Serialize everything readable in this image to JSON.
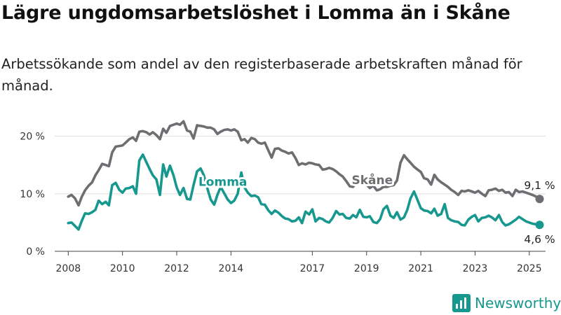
{
  "title": "Lägre ungdomsarbetslöshet i Lomma än i Skåne",
  "subtitle": "Arbetssökande som andel av den registerbaserade arbetskraften månad för månad.",
  "brand": "Newsworthy",
  "colors": {
    "skane": "#6e6e72",
    "lomma": "#17988e",
    "grid": "#dddddd",
    "axis": "#444444"
  },
  "chart_data": {
    "type": "line",
    "title": "Lägre ungdomsarbetslöshet i Lomma än i Skåne",
    "subtitle": "Arbetssökande som andel av den registerbaserade arbetskraften månad för månad.",
    "xlabel": "",
    "ylabel": "",
    "xlim": [
      2007.5,
      2025.6
    ],
    "ylim": [
      0,
      23
    ],
    "grid": true,
    "y_ticks": [
      0,
      10,
      20
    ],
    "y_tick_labels": [
      "0 %",
      "10 %",
      "20 %"
    ],
    "x_ticks": [
      2008,
      2010,
      2012,
      2014,
      2017,
      2019,
      2021,
      2023,
      2025
    ],
    "x_tick_labels": [
      "2008",
      "2010",
      "2012",
      "2014",
      "2017",
      "2019",
      "2021",
      "2023",
      "2025"
    ],
    "series": [
      {
        "name": "Skåne",
        "color": "#6e6e72",
        "end_label": "9,1 %",
        "points": [
          [
            2008.0,
            9.5
          ],
          [
            2008.12,
            9.8
          ],
          [
            2008.25,
            9.2
          ],
          [
            2008.38,
            8.0
          ],
          [
            2008.5,
            9.5
          ],
          [
            2008.62,
            10.6
          ],
          [
            2008.75,
            11.4
          ],
          [
            2008.88,
            12.0
          ],
          [
            2009.0,
            13.2
          ],
          [
            2009.12,
            14.1
          ],
          [
            2009.25,
            15.2
          ],
          [
            2009.38,
            15.0
          ],
          [
            2009.5,
            14.8
          ],
          [
            2009.62,
            17.2
          ],
          [
            2009.75,
            18.2
          ],
          [
            2009.88,
            18.3
          ],
          [
            2010.0,
            18.4
          ],
          [
            2010.12,
            18.9
          ],
          [
            2010.25,
            19.5
          ],
          [
            2010.38,
            19.8
          ],
          [
            2010.5,
            19.2
          ],
          [
            2010.62,
            20.8
          ],
          [
            2010.75,
            20.9
          ],
          [
            2010.88,
            20.7
          ],
          [
            2011.0,
            20.3
          ],
          [
            2011.12,
            20.7
          ],
          [
            2011.25,
            20.2
          ],
          [
            2011.38,
            19.5
          ],
          [
            2011.5,
            21.3
          ],
          [
            2011.62,
            20.6
          ],
          [
            2011.75,
            21.8
          ],
          [
            2011.88,
            22.0
          ],
          [
            2012.0,
            22.2
          ],
          [
            2012.12,
            22.0
          ],
          [
            2012.25,
            22.6
          ],
          [
            2012.38,
            21.0
          ],
          [
            2012.5,
            20.8
          ],
          [
            2012.62,
            19.6
          ],
          [
            2012.75,
            21.9
          ],
          [
            2012.88,
            21.8
          ],
          [
            2013.0,
            21.7
          ],
          [
            2013.12,
            21.5
          ],
          [
            2013.25,
            21.5
          ],
          [
            2013.38,
            21.2
          ],
          [
            2013.5,
            20.4
          ],
          [
            2013.62,
            20.8
          ],
          [
            2013.75,
            21.1
          ],
          [
            2013.88,
            21.2
          ],
          [
            2014.0,
            21.0
          ],
          [
            2014.12,
            21.2
          ],
          [
            2014.25,
            20.8
          ],
          [
            2014.38,
            19.3
          ],
          [
            2014.5,
            19.5
          ],
          [
            2014.62,
            18.9
          ],
          [
            2014.75,
            19.7
          ],
          [
            2014.88,
            19.5
          ],
          [
            2015.0,
            18.9
          ],
          [
            2015.12,
            18.7
          ],
          [
            2015.25,
            18.9
          ],
          [
            2015.38,
            17.5
          ],
          [
            2015.5,
            16.3
          ],
          [
            2015.62,
            17.8
          ],
          [
            2015.75,
            17.9
          ],
          [
            2015.88,
            17.5
          ],
          [
            2016.0,
            17.3
          ],
          [
            2016.12,
            17.0
          ],
          [
            2016.25,
            17.2
          ],
          [
            2016.38,
            16.2
          ],
          [
            2016.5,
            15.0
          ],
          [
            2016.62,
            15.3
          ],
          [
            2016.75,
            15.1
          ],
          [
            2016.88,
            15.4
          ],
          [
            2017.0,
            15.3
          ],
          [
            2017.12,
            15.1
          ],
          [
            2017.25,
            15.0
          ],
          [
            2017.38,
            14.2
          ],
          [
            2017.5,
            14.3
          ],
          [
            2017.62,
            14.5
          ],
          [
            2017.75,
            14.3
          ],
          [
            2017.88,
            13.9
          ],
          [
            2018.0,
            13.4
          ],
          [
            2018.12,
            13.0
          ],
          [
            2018.25,
            12.2
          ],
          [
            2018.38,
            11.3
          ],
          [
            2018.5,
            11.2
          ],
          [
            2018.62,
            11.9
          ],
          [
            2018.75,
            12.1
          ],
          [
            2018.88,
            11.8
          ],
          [
            2019.0,
            11.6
          ],
          [
            2019.12,
            11.0
          ],
          [
            2019.25,
            11.4
          ],
          [
            2019.38,
            10.6
          ],
          [
            2019.5,
            10.8
          ],
          [
            2019.62,
            11.2
          ],
          [
            2019.75,
            11.2
          ],
          [
            2019.88,
            11.4
          ],
          [
            2020.0,
            11.5
          ],
          [
            2020.12,
            12.3
          ],
          [
            2020.25,
            15.4
          ],
          [
            2020.38,
            16.7
          ],
          [
            2020.5,
            16.0
          ],
          [
            2020.62,
            15.4
          ],
          [
            2020.75,
            14.7
          ],
          [
            2020.88,
            14.2
          ],
          [
            2021.0,
            13.8
          ],
          [
            2021.12,
            12.7
          ],
          [
            2021.25,
            12.5
          ],
          [
            2021.38,
            11.6
          ],
          [
            2021.5,
            13.3
          ],
          [
            2021.62,
            12.5
          ],
          [
            2021.75,
            12.0
          ],
          [
            2021.88,
            11.6
          ],
          [
            2022.0,
            11.2
          ],
          [
            2022.12,
            10.7
          ],
          [
            2022.25,
            10.3
          ],
          [
            2022.38,
            9.8
          ],
          [
            2022.5,
            10.5
          ],
          [
            2022.62,
            10.4
          ],
          [
            2022.75,
            10.6
          ],
          [
            2022.88,
            10.4
          ],
          [
            2023.0,
            10.2
          ],
          [
            2023.12,
            10.5
          ],
          [
            2023.25,
            10.0
          ],
          [
            2023.38,
            9.6
          ],
          [
            2023.5,
            10.6
          ],
          [
            2023.62,
            10.7
          ],
          [
            2023.75,
            10.9
          ],
          [
            2023.88,
            10.5
          ],
          [
            2024.0,
            10.7
          ],
          [
            2024.12,
            10.2
          ],
          [
            2024.25,
            10.3
          ],
          [
            2024.38,
            9.6
          ],
          [
            2024.5,
            10.7
          ],
          [
            2024.62,
            10.3
          ],
          [
            2024.75,
            10.4
          ],
          [
            2024.88,
            10.2
          ],
          [
            2025.0,
            10.0
          ],
          [
            2025.12,
            9.8
          ],
          [
            2025.25,
            9.5
          ],
          [
            2025.38,
            9.1
          ]
        ]
      },
      {
        "name": "Lomma",
        "color": "#17988e",
        "end_label": "4,6 %",
        "points": [
          [
            2008.0,
            4.9
          ],
          [
            2008.12,
            5.0
          ],
          [
            2008.25,
            4.4
          ],
          [
            2008.38,
            3.8
          ],
          [
            2008.5,
            5.3
          ],
          [
            2008.62,
            6.6
          ],
          [
            2008.75,
            6.5
          ],
          [
            2008.88,
            6.8
          ],
          [
            2009.0,
            7.2
          ],
          [
            2009.12,
            8.8
          ],
          [
            2009.25,
            8.2
          ],
          [
            2009.38,
            8.6
          ],
          [
            2009.5,
            8.0
          ],
          [
            2009.62,
            11.5
          ],
          [
            2009.75,
            11.9
          ],
          [
            2009.88,
            10.7
          ],
          [
            2010.0,
            10.2
          ],
          [
            2010.12,
            10.9
          ],
          [
            2010.25,
            11.0
          ],
          [
            2010.38,
            11.3
          ],
          [
            2010.5,
            10.0
          ],
          [
            2010.62,
            15.8
          ],
          [
            2010.75,
            16.8
          ],
          [
            2010.88,
            15.5
          ],
          [
            2011.0,
            14.3
          ],
          [
            2011.12,
            13.2
          ],
          [
            2011.25,
            12.5
          ],
          [
            2011.38,
            9.8
          ],
          [
            2011.5,
            15.1
          ],
          [
            2011.62,
            13.0
          ],
          [
            2011.75,
            14.9
          ],
          [
            2011.88,
            13.2
          ],
          [
            2012.0,
            11.1
          ],
          [
            2012.12,
            9.8
          ],
          [
            2012.25,
            11.0
          ],
          [
            2012.38,
            9.1
          ],
          [
            2012.5,
            9.0
          ],
          [
            2012.62,
            11.5
          ],
          [
            2012.75,
            13.9
          ],
          [
            2012.88,
            14.4
          ],
          [
            2013.0,
            13.2
          ],
          [
            2013.12,
            11.1
          ],
          [
            2013.25,
            9.0
          ],
          [
            2013.38,
            8.1
          ],
          [
            2013.5,
            9.8
          ],
          [
            2013.62,
            11.2
          ],
          [
            2013.75,
            10.1
          ],
          [
            2013.88,
            9.0
          ],
          [
            2014.0,
            8.4
          ],
          [
            2014.12,
            8.8
          ],
          [
            2014.25,
            10.0
          ],
          [
            2014.38,
            13.7
          ],
          [
            2014.5,
            11.1
          ],
          [
            2014.62,
            10.2
          ],
          [
            2014.75,
            9.6
          ],
          [
            2014.88,
            9.7
          ],
          [
            2015.0,
            9.4
          ],
          [
            2015.12,
            8.2
          ],
          [
            2015.25,
            8.1
          ],
          [
            2015.38,
            7.1
          ],
          [
            2015.5,
            6.5
          ],
          [
            2015.62,
            7.1
          ],
          [
            2015.75,
            6.7
          ],
          [
            2015.88,
            6.1
          ],
          [
            2016.0,
            5.7
          ],
          [
            2016.12,
            5.6
          ],
          [
            2016.25,
            5.2
          ],
          [
            2016.38,
            5.3
          ],
          [
            2016.5,
            5.9
          ],
          [
            2016.62,
            4.9
          ],
          [
            2016.75,
            6.9
          ],
          [
            2016.88,
            6.4
          ],
          [
            2017.0,
            7.3
          ],
          [
            2017.12,
            5.2
          ],
          [
            2017.25,
            5.8
          ],
          [
            2017.38,
            5.6
          ],
          [
            2017.5,
            5.2
          ],
          [
            2017.62,
            5.0
          ],
          [
            2017.75,
            5.8
          ],
          [
            2017.88,
            7.0
          ],
          [
            2018.0,
            6.4
          ],
          [
            2018.12,
            6.5
          ],
          [
            2018.25,
            5.8
          ],
          [
            2018.38,
            5.7
          ],
          [
            2018.5,
            6.3
          ],
          [
            2018.62,
            5.9
          ],
          [
            2018.75,
            7.2
          ],
          [
            2018.88,
            6.0
          ],
          [
            2019.0,
            5.9
          ],
          [
            2019.12,
            6.1
          ],
          [
            2019.25,
            5.1
          ],
          [
            2019.38,
            4.9
          ],
          [
            2019.5,
            5.6
          ],
          [
            2019.62,
            7.3
          ],
          [
            2019.75,
            7.9
          ],
          [
            2019.88,
            6.2
          ],
          [
            2020.0,
            5.8
          ],
          [
            2020.12,
            6.8
          ],
          [
            2020.25,
            5.5
          ],
          [
            2020.38,
            5.9
          ],
          [
            2020.5,
            7.2
          ],
          [
            2020.62,
            9.2
          ],
          [
            2020.75,
            10.4
          ],
          [
            2020.88,
            8.9
          ],
          [
            2021.0,
            7.5
          ],
          [
            2021.12,
            7.1
          ],
          [
            2021.25,
            7.0
          ],
          [
            2021.38,
            6.6
          ],
          [
            2021.5,
            7.4
          ],
          [
            2021.62,
            6.2
          ],
          [
            2021.75,
            6.5
          ],
          [
            2021.88,
            8.2
          ],
          [
            2022.0,
            5.8
          ],
          [
            2022.12,
            5.4
          ],
          [
            2022.25,
            5.2
          ],
          [
            2022.38,
            5.1
          ],
          [
            2022.5,
            4.6
          ],
          [
            2022.62,
            4.5
          ],
          [
            2022.75,
            5.5
          ],
          [
            2022.88,
            6.0
          ],
          [
            2023.0,
            6.3
          ],
          [
            2023.12,
            5.2
          ],
          [
            2023.25,
            5.8
          ],
          [
            2023.38,
            5.9
          ],
          [
            2023.5,
            6.2
          ],
          [
            2023.62,
            5.9
          ],
          [
            2023.75,
            5.4
          ],
          [
            2023.88,
            6.3
          ],
          [
            2024.0,
            5.1
          ],
          [
            2024.12,
            4.5
          ],
          [
            2024.25,
            4.7
          ],
          [
            2024.38,
            5.1
          ],
          [
            2024.5,
            5.5
          ],
          [
            2024.62,
            6.0
          ],
          [
            2024.75,
            5.6
          ],
          [
            2024.88,
            5.2
          ],
          [
            2025.0,
            5.0
          ],
          [
            2025.12,
            4.8
          ],
          [
            2025.25,
            4.7
          ],
          [
            2025.38,
            4.6
          ]
        ]
      }
    ]
  }
}
